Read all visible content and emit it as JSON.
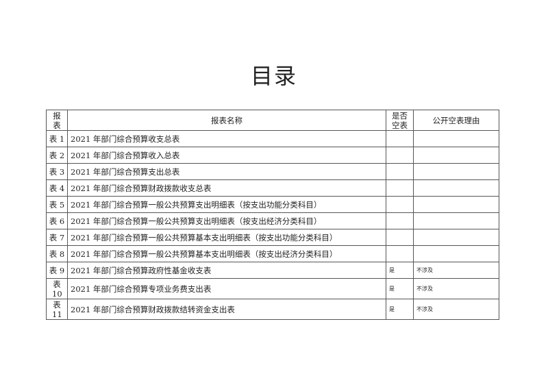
{
  "title": "目录",
  "table": {
    "headers": {
      "no": "报表",
      "name": "报表名称",
      "empty": "是否空表",
      "reason": "公开空表理由"
    },
    "rows": [
      {
        "no": "表 1",
        "name": "2021 年部门综合预算收支总表",
        "empty": "",
        "reason": ""
      },
      {
        "no": "表 2",
        "name": "2021 年部门综合预算收入总表",
        "empty": "",
        "reason": ""
      },
      {
        "no": "表 3",
        "name": "2021 年部门综合预算支出总表",
        "empty": "",
        "reason": ""
      },
      {
        "no": "表 4",
        "name": "2021 年部门综合预算财政拨款收支总表",
        "empty": "",
        "reason": ""
      },
      {
        "no": "表 5",
        "name": "2021 年部门综合预算一般公共预算支出明细表（按支出功能分类科目）",
        "empty": "",
        "reason": ""
      },
      {
        "no": "表 6",
        "name": "2021 年部门综合预算一般公共预算支出明细表（按支出经济分类科目）",
        "empty": "",
        "reason": ""
      },
      {
        "no": "表 7",
        "name": "2021 年部门综合预算一般公共预算基本支出明细表（按支出功能分类科目）",
        "empty": "",
        "reason": ""
      },
      {
        "no": "表 8",
        "name": "2021 年部门综合预算一般公共预算基本支出明细表（按支出经济分类科目）",
        "empty": "",
        "reason": ""
      },
      {
        "no": "表 9",
        "name": "2021 年部门综合预算政府性基金收支表",
        "empty": "是",
        "reason": "不涉及"
      },
      {
        "no": "表 10",
        "name": "2021 年部门综合预算专项业务费支出表",
        "empty": "是",
        "reason": "不涉及"
      },
      {
        "no": "表 11",
        "name": "2021 年部门综合预算财政拨款结转资金支出表",
        "empty": "是",
        "reason": "不涉及"
      }
    ]
  }
}
